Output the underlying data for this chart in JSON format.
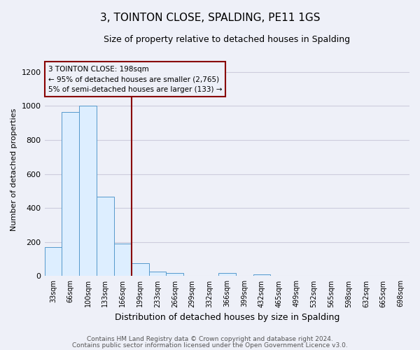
{
  "title": "3, TOINTON CLOSE, SPALDING, PE11 1GS",
  "subtitle": "Size of property relative to detached houses in Spalding",
  "xlabel": "Distribution of detached houses by size in Spalding",
  "ylabel": "Number of detached properties",
  "bar_labels": [
    "33sqm",
    "66sqm",
    "100sqm",
    "133sqm",
    "166sqm",
    "199sqm",
    "233sqm",
    "266sqm",
    "299sqm",
    "332sqm",
    "366sqm",
    "399sqm",
    "432sqm",
    "465sqm",
    "499sqm",
    "532sqm",
    "565sqm",
    "598sqm",
    "632sqm",
    "665sqm",
    "698sqm"
  ],
  "bar_values": [
    170,
    965,
    1000,
    465,
    190,
    75,
    25,
    20,
    0,
    0,
    20,
    0,
    10,
    0,
    0,
    0,
    0,
    0,
    0,
    0,
    0
  ],
  "bar_color": "#ddeeff",
  "bar_edge_color": "#5599cc",
  "ylim": [
    0,
    1250
  ],
  "yticks": [
    0,
    200,
    400,
    600,
    800,
    1000,
    1200
  ],
  "vline_color": "#880000",
  "annotation_title": "3 TOINTON CLOSE: 198sqm",
  "annotation_line1": "← 95% of detached houses are smaller (2,765)",
  "annotation_line2": "5% of semi-detached houses are larger (133) →",
  "footer_line1": "Contains HM Land Registry data © Crown copyright and database right 2024.",
  "footer_line2": "Contains public sector information licensed under the Open Government Licence v3.0.",
  "background_color": "#eef0f8",
  "grid_color": "#ccccdd",
  "title_fontsize": 11,
  "subtitle_fontsize": 9,
  "xlabel_fontsize": 9,
  "ylabel_fontsize": 8,
  "tick_fontsize": 7,
  "footer_fontsize": 6.5
}
